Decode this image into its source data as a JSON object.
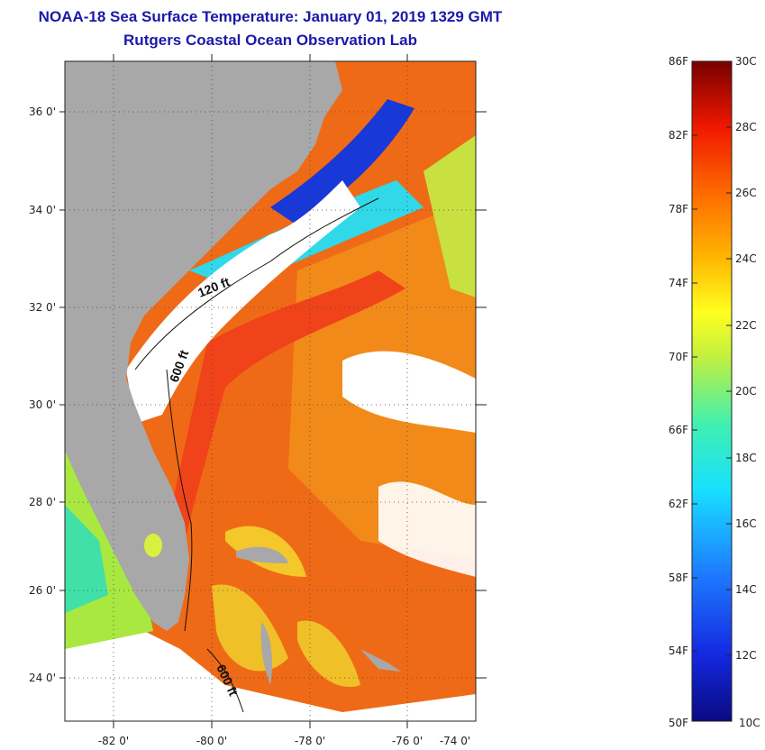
{
  "header": {
    "title_line1": "NOAA-18 Sea Surface Temperature:  January 01, 2019 1329 GMT",
    "title_line2": "Rutgers Coastal Ocean Observation Lab"
  },
  "map": {
    "lat_labels": [
      "36 0'",
      "34 0'",
      "32 0'",
      "30 0'",
      "28 0'",
      "26 0'",
      "24 0'"
    ],
    "lon_labels": [
      "-82 0'",
      "-80 0'",
      "-78 0'",
      "-76 0'",
      "-74 0'"
    ],
    "contour_labels": [
      "120 ft",
      "600 ft",
      "600 ft"
    ],
    "colors": {
      "land": "#a8a8a8",
      "cloud": "#ffffff",
      "gulf_stream": "#f2501a",
      "shelf_cold": "#1030d0"
    }
  },
  "colorbar": {
    "fahrenheit_labels": [
      "86F",
      "82F",
      "78F",
      "74F",
      "70F",
      "66F",
      "62F",
      "58F",
      "54F",
      "50F"
    ],
    "celsius_labels": [
      "30C",
      "28C",
      "26C",
      "24C",
      "22C",
      "20C",
      "18C",
      "16C",
      "14C",
      "12C",
      "10C"
    ]
  }
}
